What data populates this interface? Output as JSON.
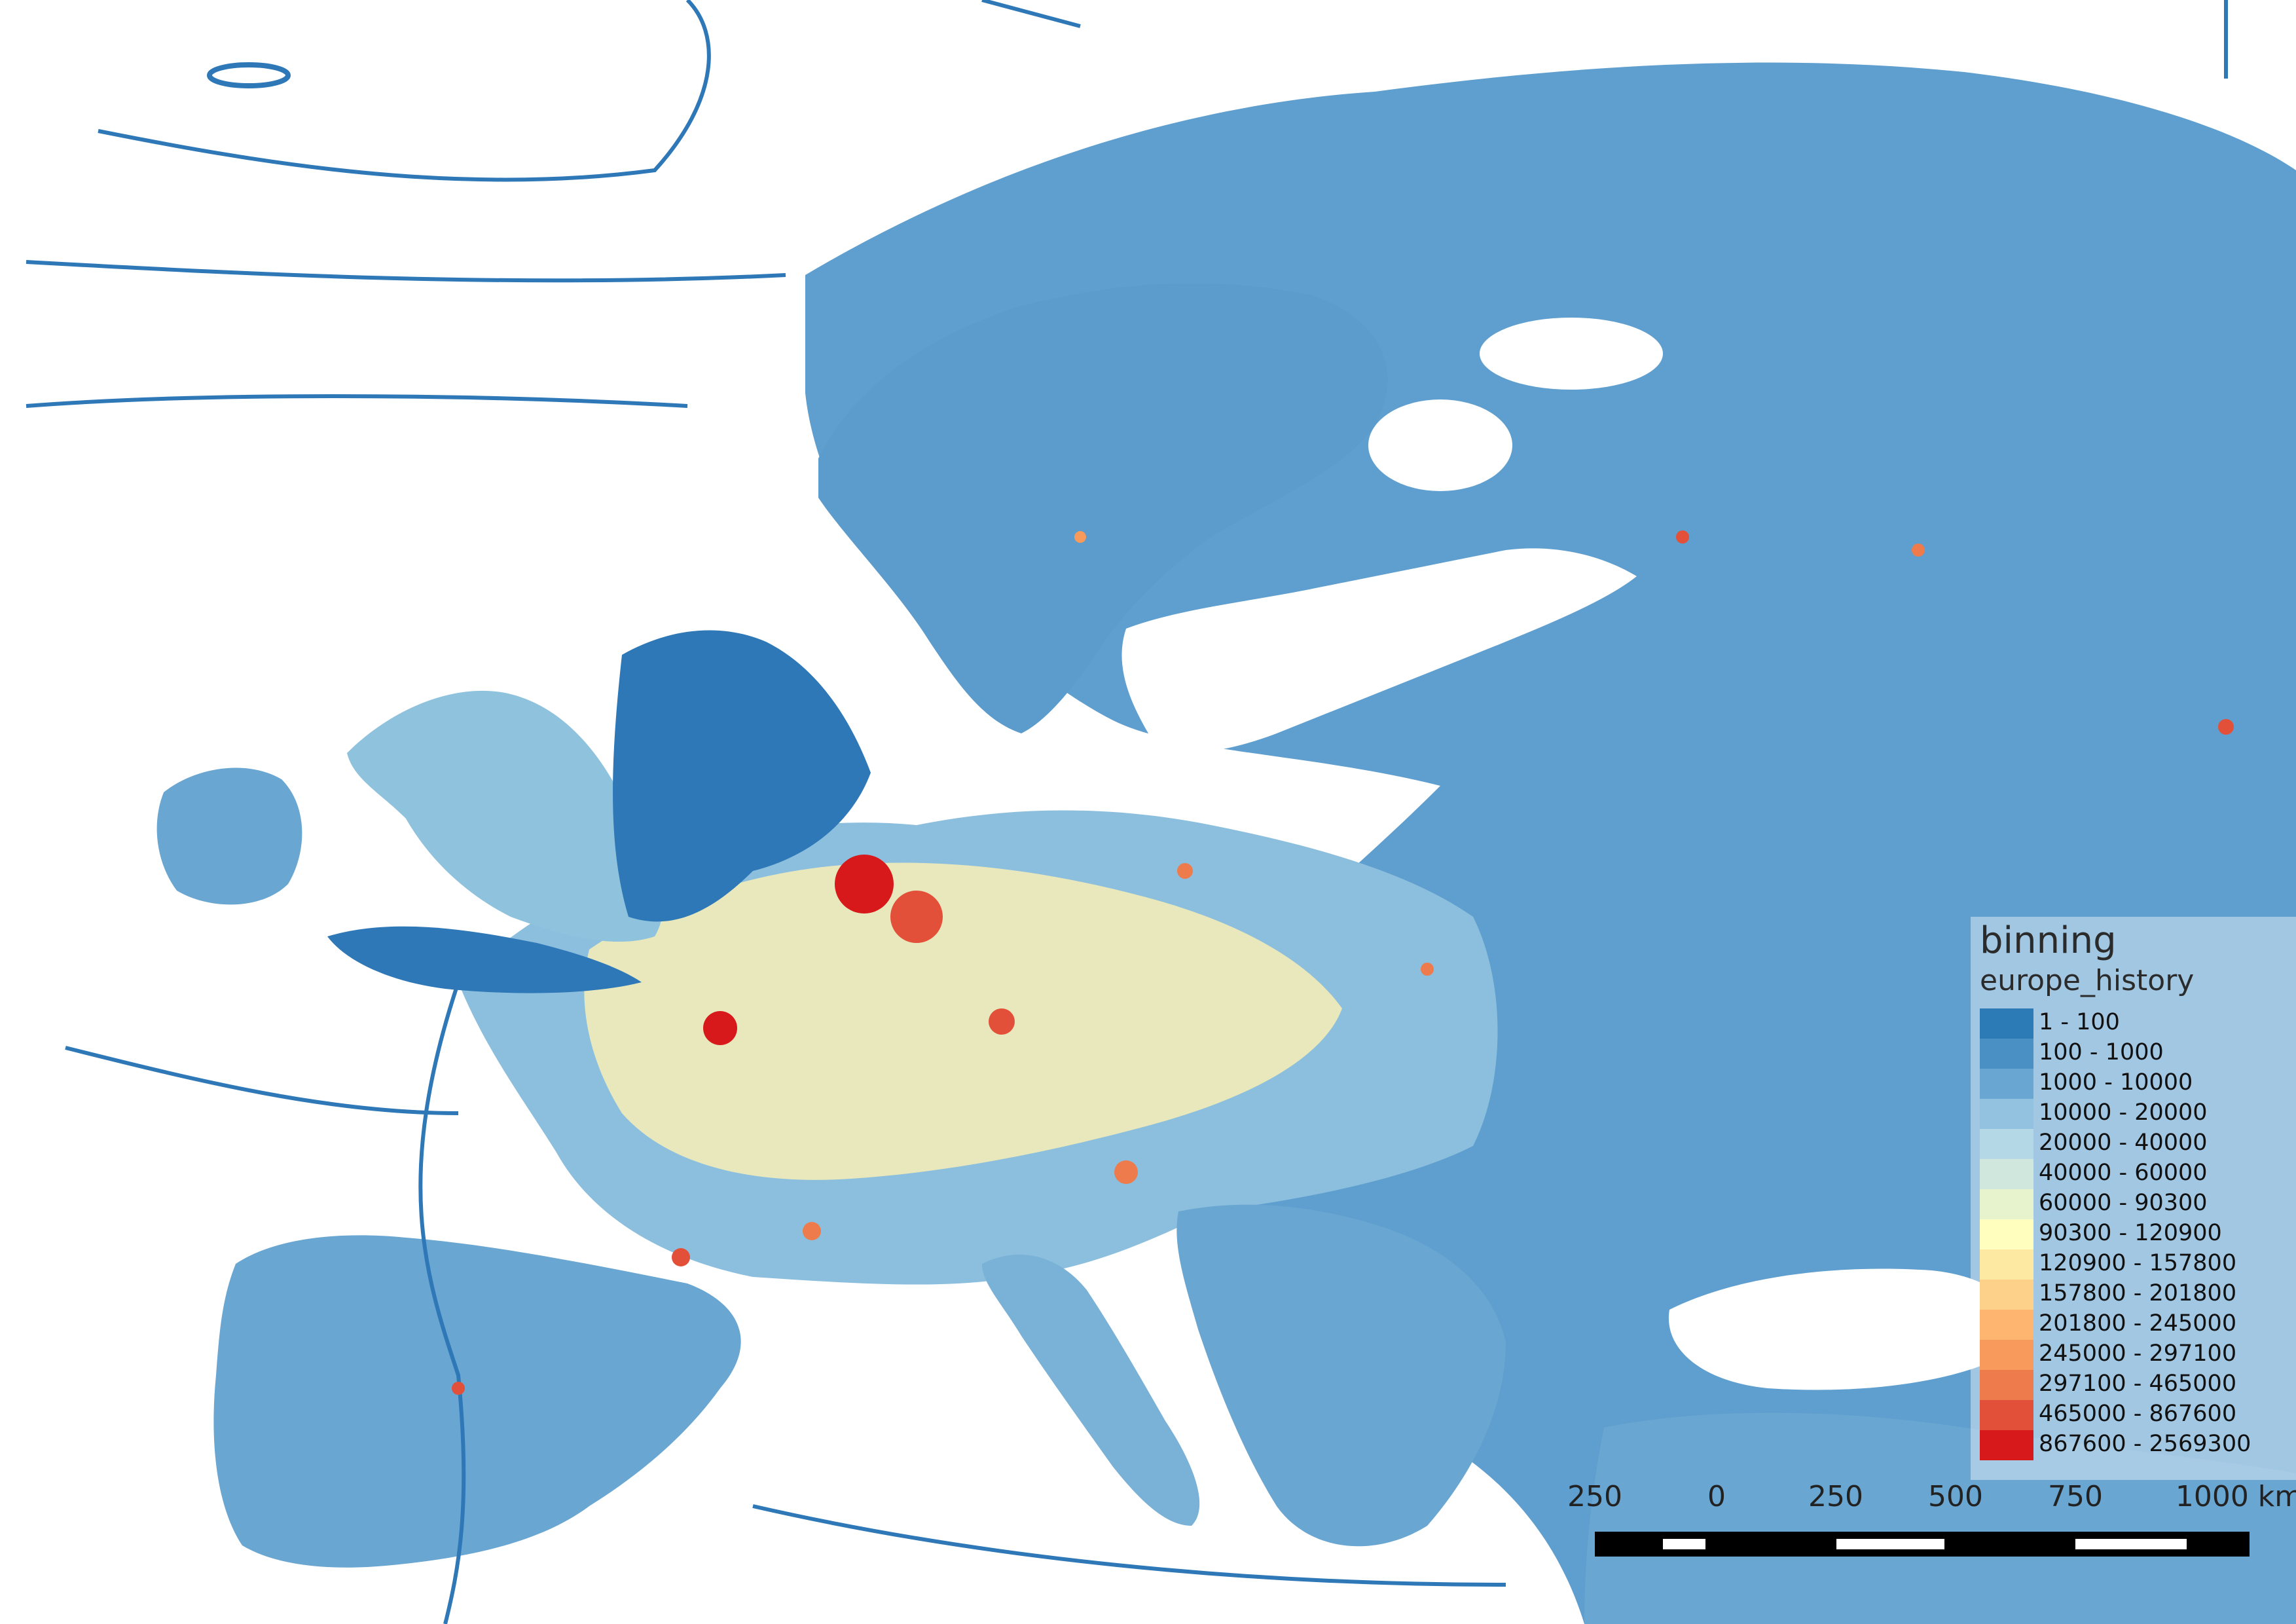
{
  "map": {
    "colors": {
      "sea_track": "#2f78b7",
      "land_base": "#6aa6d2",
      "background": "#ffffff"
    }
  },
  "legend": {
    "title": "binning",
    "layer": "europe_history",
    "items": [
      {
        "label": "1 - 100",
        "color": "#2c7bb6"
      },
      {
        "label": "100 - 1000",
        "color": "#4a90c4"
      },
      {
        "label": "1000 - 10000",
        "color": "#6aa6d2"
      },
      {
        "label": "10000 - 20000",
        "color": "#92c2df"
      },
      {
        "label": "20000 - 40000",
        "color": "#b5d8e6"
      },
      {
        "label": "40000 - 60000",
        "color": "#cfe7dc"
      },
      {
        "label": "60000 - 90300",
        "color": "#e6f3cc"
      },
      {
        "label": "90300 - 120900",
        "color": "#fffebe"
      },
      {
        "label": "120900 - 157800",
        "color": "#fee9a3"
      },
      {
        "label": "157800 - 201800",
        "color": "#fed18b"
      },
      {
        "label": "201800 - 245000",
        "color": "#fdb56f"
      },
      {
        "label": "245000 - 297100",
        "color": "#f79a5c"
      },
      {
        "label": "297100 - 465000",
        "color": "#ee7b4c"
      },
      {
        "label": "465000 - 867600",
        "color": "#e2503a"
      },
      {
        "label": "867600 - 2569300",
        "color": "#d7191c"
      }
    ]
  },
  "scale_bar": {
    "ticks": [
      "250",
      "0",
      "250",
      "500",
      "750",
      "1000 km"
    ]
  }
}
